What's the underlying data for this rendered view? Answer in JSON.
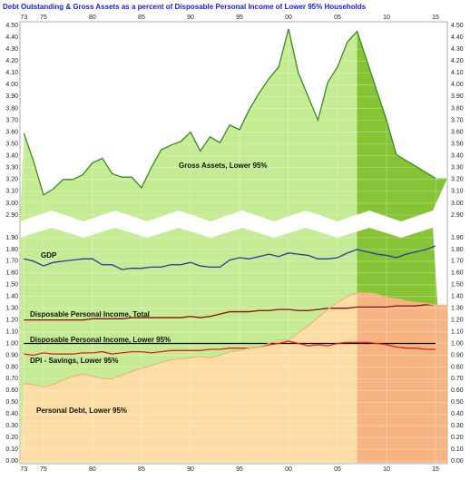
{
  "chart_data": [
    {
      "type": "area",
      "title": "Debt Outstanding & Gross Assets as a percent of Disposable Personal Income of Lower 95% Households",
      "x": [
        1973,
        1974,
        1975,
        1976,
        1977,
        1978,
        1979,
        1980,
        1981,
        1982,
        1983,
        1984,
        1985,
        1986,
        1987,
        1988,
        1989,
        1990,
        1991,
        1992,
        1993,
        1994,
        1995,
        1996,
        1997,
        1998,
        1999,
        2000,
        2001,
        2002,
        2003,
        2004,
        2005,
        2006,
        2007,
        2008,
        2009,
        2010,
        2011,
        2012,
        2013,
        2014,
        2015
      ],
      "xlim": [
        1972.6,
        2016.2
      ],
      "xticks": [
        {
          "value": 1973,
          "label": "73"
        },
        {
          "value": 1975,
          "label": "75"
        },
        {
          "value": 1980,
          "label": "80"
        },
        {
          "value": 1985,
          "label": "85"
        },
        {
          "value": 1990,
          "label": "90"
        },
        {
          "value": 1995,
          "label": "95"
        },
        {
          "value": 2000,
          "label": "00"
        },
        {
          "value": 2005,
          "label": "05"
        },
        {
          "value": 2010,
          "label": "10"
        },
        {
          "value": 2015,
          "label": "15"
        }
      ],
      "ylim": [
        2.9,
        4.5
      ],
      "yticks": [
        {
          "value": 2.9,
          "label": "2.90"
        },
        {
          "value": 3.0,
          "label": "3.00"
        },
        {
          "value": 3.1,
          "label": "3.10"
        },
        {
          "value": 3.2,
          "label": "3.20"
        },
        {
          "value": 3.3,
          "label": "3.30"
        },
        {
          "value": 3.4,
          "label": "3.40"
        },
        {
          "value": 3.5,
          "label": "3.50"
        },
        {
          "value": 3.6,
          "label": "3.60"
        },
        {
          "value": 3.7,
          "label": "3.70"
        },
        {
          "value": 3.8,
          "label": "3.80"
        },
        {
          "value": 3.9,
          "label": "3.90"
        },
        {
          "value": 4.0,
          "label": "4.00"
        },
        {
          "value": 4.1,
          "label": "4.10"
        },
        {
          "value": 4.2,
          "label": "4.20"
        },
        {
          "value": 4.3,
          "label": "4.30"
        },
        {
          "value": 4.4,
          "label": "4.40"
        },
        {
          "value": 4.5,
          "label": "4.50"
        }
      ],
      "grid": true,
      "shade_from": 2007,
      "series": [
        {
          "name": "Gross Assets, Lower 95%",
          "color": "#3a8a1e",
          "fill": "#c5eb95",
          "shade_fill": "#86c335",
          "values": [
            3.59,
            3.35,
            3.07,
            3.12,
            3.2,
            3.2,
            3.24,
            3.34,
            3.38,
            3.25,
            3.22,
            3.22,
            3.13,
            3.3,
            3.45,
            3.49,
            3.52,
            3.6,
            3.44,
            3.56,
            3.51,
            3.66,
            3.62,
            3.79,
            3.93,
            4.05,
            4.15,
            4.47,
            4.1,
            3.9,
            3.7,
            4.02,
            4.15,
            4.36,
            4.45,
            4.2,
            3.95,
            3.7,
            3.41,
            3.36,
            3.31,
            3.26,
            3.21
          ]
        }
      ]
    },
    {
      "type": "line",
      "x": [
        1973,
        1974,
        1975,
        1976,
        1977,
        1978,
        1979,
        1980,
        1981,
        1982,
        1983,
        1984,
        1985,
        1986,
        1987,
        1988,
        1989,
        1990,
        1991,
        1992,
        1993,
        1994,
        1995,
        1996,
        1997,
        1998,
        1999,
        2000,
        2001,
        2002,
        2003,
        2004,
        2005,
        2006,
        2007,
        2008,
        2009,
        2010,
        2011,
        2012,
        2013,
        2014,
        2015
      ],
      "xlim": [
        1972.6,
        2016.2
      ],
      "xticks": [
        {
          "value": 1973,
          "label": "73"
        },
        {
          "value": 1975,
          "label": "75"
        },
        {
          "value": 1980,
          "label": "80"
        },
        {
          "value": 1985,
          "label": "85"
        },
        {
          "value": 1990,
          "label": "90"
        },
        {
          "value": 1995,
          "label": "95"
        },
        {
          "value": 2000,
          "label": "00"
        },
        {
          "value": 2005,
          "label": "05"
        },
        {
          "value": 2010,
          "label": "10"
        },
        {
          "value": 2015,
          "label": "15"
        }
      ],
      "ylim": [
        0,
        1.9
      ],
      "yticks": [
        {
          "value": 0,
          "label": "0.00"
        },
        {
          "value": 0.1,
          "label": "0.10"
        },
        {
          "value": 0.2,
          "label": "0.20"
        },
        {
          "value": 0.3,
          "label": "0.30"
        },
        {
          "value": 0.4,
          "label": "0.40"
        },
        {
          "value": 0.5,
          "label": "0.50"
        },
        {
          "value": 0.6,
          "label": "0.60"
        },
        {
          "value": 0.7,
          "label": "0.70"
        },
        {
          "value": 0.8,
          "label": "0.80"
        },
        {
          "value": 0.9,
          "label": "0.90"
        },
        {
          "value": 1.0,
          "label": "1.00"
        },
        {
          "value": 1.1,
          "label": "1.10"
        },
        {
          "value": 1.2,
          "label": "1.20"
        },
        {
          "value": 1.3,
          "label": "1.30"
        },
        {
          "value": 1.4,
          "label": "1.40"
        },
        {
          "value": 1.5,
          "label": "1.50"
        },
        {
          "value": 1.6,
          "label": "1.60"
        },
        {
          "value": 1.7,
          "label": "1.70"
        },
        {
          "value": 1.8,
          "label": "1.80"
        },
        {
          "value": 1.9,
          "label": "1.90"
        }
      ],
      "grid": true,
      "shade_from": 2007,
      "background": "#c5eb95",
      "shade_background": "#86c335",
      "series": [
        {
          "name": "GDP",
          "color": "#1f3fa0",
          "values": [
            1.72,
            1.7,
            1.66,
            1.69,
            1.7,
            1.71,
            1.72,
            1.72,
            1.67,
            1.67,
            1.63,
            1.64,
            1.64,
            1.65,
            1.65,
            1.67,
            1.67,
            1.69,
            1.66,
            1.65,
            1.65,
            1.71,
            1.73,
            1.72,
            1.74,
            1.76,
            1.74,
            1.77,
            1.76,
            1.75,
            1.72,
            1.72,
            1.73,
            1.77,
            1.8,
            1.78,
            1.76,
            1.75,
            1.73,
            1.76,
            1.78,
            1.8,
            1.83
          ]
        },
        {
          "name": "Disposable Personal Income, Total",
          "color": "#8b0a0a",
          "values": [
            1.2,
            1.2,
            1.2,
            1.2,
            1.2,
            1.2,
            1.2,
            1.21,
            1.21,
            1.21,
            1.21,
            1.22,
            1.22,
            1.22,
            1.22,
            1.22,
            1.22,
            1.23,
            1.22,
            1.23,
            1.25,
            1.27,
            1.27,
            1.27,
            1.28,
            1.28,
            1.29,
            1.29,
            1.28,
            1.28,
            1.29,
            1.3,
            1.3,
            1.3,
            1.31,
            1.31,
            1.31,
            1.31,
            1.32,
            1.32,
            1.32,
            1.33,
            1.33
          ]
        },
        {
          "name": "Disposable Personal Income, Lower 95%",
          "color": "#000000",
          "values": [
            1,
            1,
            1,
            1,
            1,
            1,
            1,
            1,
            1,
            1,
            1,
            1,
            1,
            1,
            1,
            1,
            1,
            1,
            1,
            1,
            1,
            1,
            1,
            1,
            1,
            1,
            1,
            1,
            1,
            1,
            1,
            1,
            1,
            1,
            1,
            1,
            1,
            1,
            1,
            1,
            1,
            1,
            1
          ]
        },
        {
          "name": "DPI - Savings, Lower 95%",
          "color": "#e0241b",
          "values": [
            0.91,
            0.9,
            0.92,
            0.91,
            0.91,
            0.91,
            0.92,
            0.92,
            0.93,
            0.91,
            0.92,
            0.93,
            0.93,
            0.92,
            0.93,
            0.94,
            0.94,
            0.94,
            0.94,
            0.95,
            0.95,
            0.96,
            0.96,
            0.96,
            0.97,
            0.99,
            1.0,
            1.02,
            1.0,
            0.98,
            0.99,
            0.98,
            1.0,
            1.01,
            1.01,
            1.01,
            1.0,
            0.99,
            0.97,
            0.96,
            0.96,
            0.95,
            0.95
          ]
        },
        {
          "name": "Personal Debt, Lower 95%",
          "color": "#f0b878",
          "fill": "#fddca6",
          "shade_fill": "#f7b483",
          "values": [
            0.66,
            0.65,
            0.63,
            0.65,
            0.69,
            0.72,
            0.74,
            0.72,
            0.7,
            0.7,
            0.73,
            0.76,
            0.79,
            0.81,
            0.84,
            0.86,
            0.87,
            0.88,
            0.89,
            0.88,
            0.9,
            0.93,
            0.94,
            0.96,
            0.97,
            1.0,
            1.03,
            1.03,
            1.09,
            1.15,
            1.22,
            1.29,
            1.35,
            1.4,
            1.43,
            1.43,
            1.42,
            1.39,
            1.38,
            1.36,
            1.35,
            1.34,
            1.33
          ]
        }
      ]
    }
  ]
}
